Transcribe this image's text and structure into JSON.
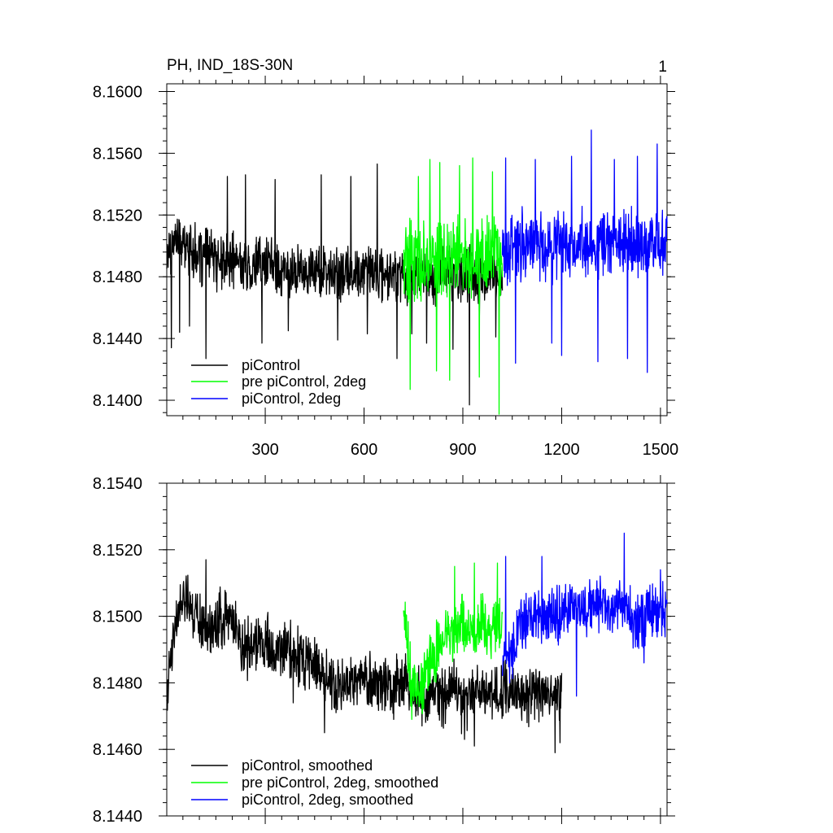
{
  "chart_data": [
    {
      "type": "line",
      "title": "PH, IND_18S-30N",
      "panel_label": "1",
      "xlim": [
        1,
        1520
      ],
      "ylim": [
        8.139,
        8.1605
      ],
      "x_ticks": [
        300,
        600,
        900,
        1200,
        1500
      ],
      "x_tick_labels": [
        "300",
        "600",
        "900",
        "1200",
        "1500"
      ],
      "y_ticks": [
        8.14,
        8.144,
        8.148,
        8.152,
        8.156,
        8.16
      ],
      "y_tick_labels": [
        "8.1400",
        "8.1440",
        "8.1480",
        "8.1520",
        "8.1560",
        "8.1600"
      ],
      "legend_position": "bottom-left",
      "series": [
        {
          "name": "piControl",
          "color": "#000000",
          "x_start": 1,
          "x_end": 1020,
          "values": [
            8.1495,
            8.1505,
            8.15,
            8.1498,
            8.1492,
            8.1495,
            8.149,
            8.1488,
            8.1492,
            8.1487,
            8.1485,
            8.149,
            8.1488,
            8.1486,
            8.1484,
            8.1482,
            8.1484,
            8.1485,
            8.1483,
            8.1481,
            8.1483,
            8.148,
            8.1485,
            8.1482,
            8.1483,
            8.1481,
            8.1482,
            8.148,
            8.1483,
            8.1478,
            8.1485,
            8.148,
            8.1478,
            8.1482,
            8.1483,
            8.1479,
            8.1481,
            8.1483,
            8.1479,
            8.1482,
            8.148
          ],
          "amplitude": 0.0018,
          "spikes": [
            [
              15,
              8.1434
            ],
            [
              40,
              8.1444
            ],
            [
              70,
              8.1448
            ],
            [
              120,
              8.1427
            ],
            [
              185,
              8.1545
            ],
            [
              240,
              8.1546
            ],
            [
              290,
              8.1437
            ],
            [
              330,
              8.1543
            ],
            [
              370,
              8.1445
            ],
            [
              470,
              8.1546
            ],
            [
              520,
              8.1439
            ],
            [
              560,
              8.1545
            ],
            [
              610,
              8.1443
            ],
            [
              640,
              8.1553
            ],
            [
              700,
              8.1427
            ],
            [
              745,
              8.1443
            ],
            [
              790,
              8.1437
            ],
            [
              870,
              8.1433
            ],
            [
              920,
              8.1397
            ],
            [
              950,
              8.1448
            ],
            [
              1000,
              8.1441
            ]
          ]
        },
        {
          "name": "pre piControl, 2deg",
          "color": "#00ff00",
          "x_start": 720,
          "x_end": 1020,
          "values": [
            8.1495,
            8.149,
            8.1488,
            8.1492,
            8.149,
            8.1494,
            8.1491,
            8.1495,
            8.1492,
            8.1496,
            8.1494,
            8.1497,
            8.1495
          ],
          "amplitude": 0.0025,
          "spikes": [
            [
              740,
              8.1407
            ],
            [
              765,
              8.1545
            ],
            [
              800,
              8.1556
            ],
            [
              820,
              8.1419
            ],
            [
              830,
              8.1554
            ],
            [
              860,
              8.1413
            ],
            [
              890,
              8.1552
            ],
            [
              930,
              8.1557
            ],
            [
              950,
              8.1415
            ],
            [
              990,
              8.1548
            ],
            [
              1010,
              8.1391
            ]
          ]
        },
        {
          "name": "piControl, 2deg",
          "color": "#0000ff",
          "x_start": 1020,
          "x_end": 1520,
          "values": [
            8.1498,
            8.15,
            8.1499,
            8.1502,
            8.1498,
            8.1501,
            8.15,
            8.1503,
            8.1499,
            8.1502,
            8.1501,
            8.15,
            8.1502,
            8.15,
            8.1503,
            8.1501,
            8.1502,
            8.15,
            8.1501,
            8.1502,
            8.15
          ],
          "amplitude": 0.0022,
          "spikes": [
            [
              1030,
              8.1557
            ],
            [
              1060,
              8.1424
            ],
            [
              1120,
              8.1556
            ],
            [
              1170,
              8.1437
            ],
            [
              1200,
              8.1429
            ],
            [
              1230,
              8.1558
            ],
            [
              1290,
              8.1575
            ],
            [
              1310,
              8.1425
            ],
            [
              1360,
              8.1556
            ],
            [
              1400,
              8.1427
            ],
            [
              1430,
              8.1558
            ],
            [
              1460,
              8.1418
            ],
            [
              1490,
              8.1566
            ]
          ]
        }
      ]
    },
    {
      "type": "line",
      "title": "",
      "xlim": [
        1,
        1520
      ],
      "ylim": [
        8.144,
        8.154
      ],
      "x_ticks": [
        300,
        600,
        900,
        1200,
        1500
      ],
      "y_ticks": [
        8.144,
        8.146,
        8.148,
        8.15,
        8.152,
        8.154
      ],
      "y_tick_labels": [
        "8.1440",
        "8.1460",
        "8.1480",
        "8.1500",
        "8.1520",
        "8.1540"
      ],
      "legend_position": "bottom-left",
      "series": [
        {
          "name": "piControl, smoothed",
          "color": "#000000",
          "x_start": 1,
          "x_end": 1200,
          "values": [
            8.1478,
            8.1502,
            8.1506,
            8.15,
            8.1498,
            8.1496,
            8.1502,
            8.1495,
            8.149,
            8.1493,
            8.1492,
            8.1488,
            8.1491,
            8.1488,
            8.1487,
            8.1486,
            8.1482,
            8.1478,
            8.148,
            8.1481,
            8.1481,
            8.148,
            8.1479,
            8.1481,
            8.148,
            8.1478,
            8.1475,
            8.1477,
            8.1476,
            8.1479,
            8.1474,
            8.1478,
            8.1478,
            8.1476,
            8.1477,
            8.1479,
            8.1475,
            8.1478,
            8.1477,
            8.1475,
            8.1476
          ],
          "amplitude": 0.0009,
          "spikes": [
            [
              5,
              8.1474
            ],
            [
              120,
              8.1517
            ],
            [
              385,
              8.1474
            ],
            [
              480,
              8.1465
            ],
            [
              650,
              8.1474
            ],
            [
              690,
              8.1469
            ],
            [
              905,
              8.1463
            ],
            [
              935,
              8.1461
            ],
            [
              1180,
              8.1459
            ],
            [
              1195,
              8.1462
            ]
          ]
        },
        {
          "name": "pre piControl, 2deg, smoothed",
          "color": "#00ff00",
          "x_start": 720,
          "x_end": 1020,
          "values": [
            8.1505,
            8.148,
            8.1478,
            8.1486,
            8.149,
            8.1493,
            8.1496,
            8.1498,
            8.1495,
            8.1498,
            8.1496,
            8.1498,
            8.1494
          ],
          "amplitude": 0.0009,
          "spikes": [
            [
              745,
              8.1469
            ],
            [
              875,
              8.1515
            ],
            [
              935,
              8.1516
            ],
            [
              1005,
              8.1516
            ]
          ]
        },
        {
          "name": "piControl, 2deg, smoothed",
          "color": "#0000ff",
          "x_start": 1020,
          "x_end": 1520,
          "values": [
            8.1485,
            8.149,
            8.1496,
            8.1499,
            8.1503,
            8.1499,
            8.1501,
            8.15,
            8.1503,
            8.1502,
            8.15,
            8.1504,
            8.1502,
            8.1501,
            8.1503,
            8.1502,
            8.15,
            8.1498,
            8.1502,
            8.15,
            8.1502
          ],
          "amplitude": 0.0009,
          "spikes": [
            [
              1030,
              8.1518
            ],
            [
              1140,
              8.1518
            ],
            [
              1245,
              8.1476
            ],
            [
              1390,
              8.1525
            ],
            [
              1450,
              8.1486
            ],
            [
              1500,
              8.1514
            ]
          ]
        }
      ]
    }
  ]
}
